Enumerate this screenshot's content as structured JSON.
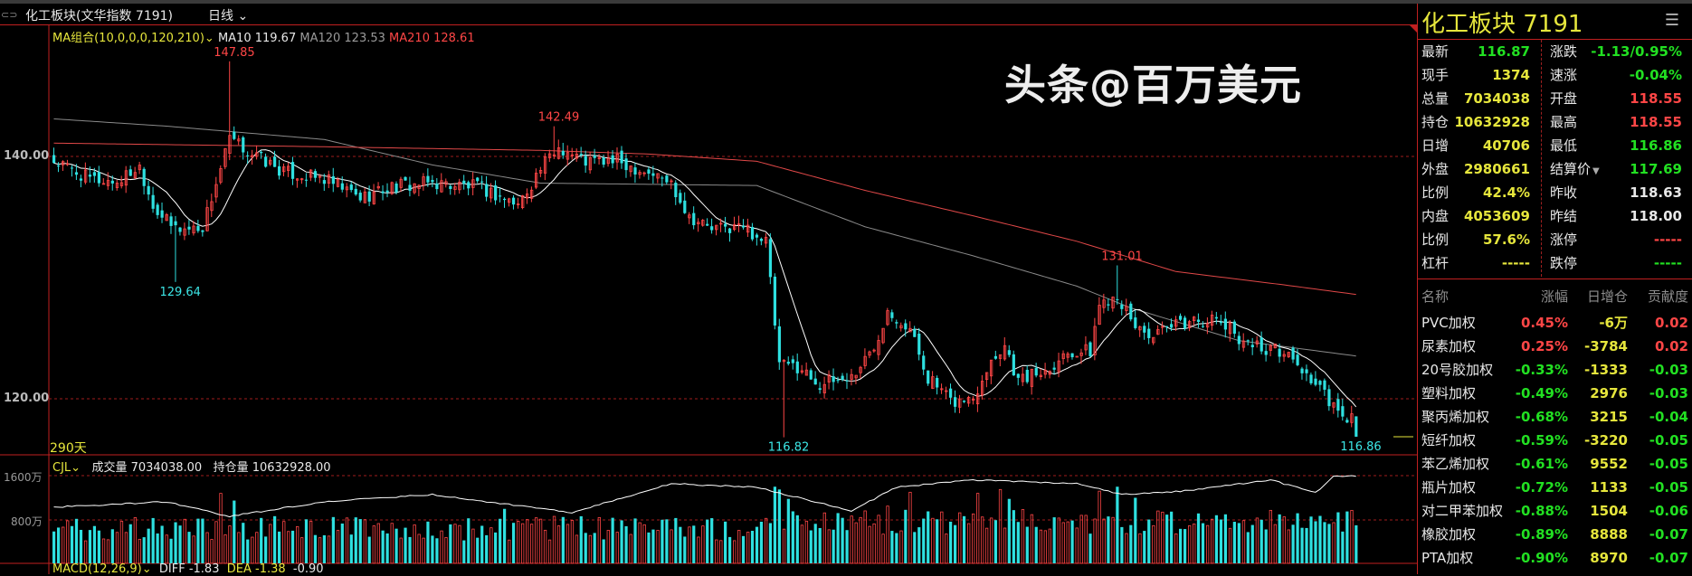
{
  "header": {
    "title": "化工板块(文华指数 7191)",
    "period": "日线"
  },
  "legend": {
    "ma_group": "MA组合(10,0,0,0,120,210)",
    "ma10": "MA10 119.67",
    "ma120": "MA120 123.53",
    "ma210": "MA210 128.61"
  },
  "axis": {
    "p140": "140.00",
    "p120": "120.00",
    "days": "290天",
    "v1600": "1600万",
    "v800": "800万"
  },
  "volume_legend": {
    "name": "CJL",
    "vol": "成交量 7034038.00",
    "oi": "持仓量 10632928.00"
  },
  "macd_legend": {
    "name": "MACD(12,26,9)",
    "diff": "DIFF -1.83",
    "dea": "DEA -1.38",
    "macd": "-0.90"
  },
  "colors": {
    "up": "#ff4646",
    "down": "#2ee0e0",
    "ma10": "#ffffff",
    "ma120": "#8a8a8a",
    "ma210": "#e04848",
    "grid": "#a01c1c"
  },
  "chart_data": {
    "type": "candlestick",
    "days": 290,
    "price_range": [
      115.4,
      150.8
    ],
    "close_anchors": [
      [
        0,
        139.6
      ],
      [
        8,
        138.1
      ],
      [
        14,
        137.9
      ],
      [
        19,
        139.2
      ],
      [
        22,
        136
      ],
      [
        26,
        134.2
      ],
      [
        29,
        134
      ],
      [
        33,
        134.2
      ],
      [
        36,
        137.8
      ],
      [
        39,
        141.4
      ],
      [
        44,
        140.2
      ],
      [
        51,
        138.7
      ],
      [
        60,
        138.1
      ],
      [
        68,
        136.6
      ],
      [
        75,
        137.5
      ],
      [
        84,
        137.8
      ],
      [
        94,
        137.5
      ],
      [
        103,
        136
      ],
      [
        108,
        139
      ],
      [
        112,
        140.8
      ],
      [
        118,
        139.6
      ],
      [
        125,
        139.6
      ],
      [
        132,
        138.7
      ],
      [
        137,
        137.8
      ],
      [
        141,
        135.1
      ],
      [
        146,
        134
      ],
      [
        153,
        134.2
      ],
      [
        158,
        133
      ],
      [
        161,
        122.7
      ],
      [
        165,
        122.7
      ],
      [
        170,
        121.2
      ],
      [
        177,
        121.8
      ],
      [
        182,
        124.2
      ],
      [
        185,
        127.5
      ],
      [
        190,
        125.7
      ],
      [
        194,
        121.8
      ],
      [
        199,
        119.7
      ],
      [
        204,
        120
      ],
      [
        207,
        122.7
      ],
      [
        211,
        124.5
      ],
      [
        214,
        121.5
      ],
      [
        220,
        122.4
      ],
      [
        225,
        123.9
      ],
      [
        230,
        123.9
      ],
      [
        232,
        127.8
      ],
      [
        236,
        128.7
      ],
      [
        239,
        126.3
      ],
      [
        244,
        125.1
      ],
      [
        249,
        126
      ],
      [
        254,
        126.6
      ],
      [
        259,
        126.3
      ],
      [
        263,
        125.1
      ],
      [
        268,
        124.2
      ],
      [
        273,
        123.9
      ],
      [
        277,
        122.4
      ],
      [
        282,
        120.3
      ],
      [
        286,
        118.2
      ],
      [
        288,
        118.63
      ],
      [
        289,
        116.87
      ]
    ],
    "last_candle": {
      "open": 118.55,
      "high": 118.55,
      "low": 116.86,
      "close": 116.87
    },
    "ma120_anchors": [
      [
        0,
        143.1
      ],
      [
        25,
        142.5
      ],
      [
        60,
        141.4
      ],
      [
        84,
        139.3
      ],
      [
        108,
        137.8
      ],
      [
        156,
        137.6
      ],
      [
        180,
        134.2
      ],
      [
        204,
        131.8
      ],
      [
        227,
        129.3
      ],
      [
        239,
        127.5
      ],
      [
        263,
        124.8
      ],
      [
        289,
        123.53
      ]
    ],
    "ma210_anchors": [
      [
        0,
        141.1
      ],
      [
        60,
        140.8
      ],
      [
        108,
        140.5
      ],
      [
        132,
        140.2
      ],
      [
        156,
        139.6
      ],
      [
        180,
        137.2
      ],
      [
        204,
        135.1
      ],
      [
        227,
        133
      ],
      [
        249,
        130.5
      ],
      [
        273,
        129.4
      ],
      [
        289,
        128.61
      ]
    ],
    "extremes": [
      {
        "day": 39,
        "kind": "high",
        "value": 147.85,
        "label": "147.85"
      },
      {
        "day": 27,
        "kind": "low",
        "value": 129.64,
        "label": "129.64"
      },
      {
        "day": 111,
        "kind": "high",
        "value": 142.49,
        "label": "142.49"
      },
      {
        "day": 236,
        "kind": "high",
        "value": 131.01,
        "label": "131.01"
      },
      {
        "day": 162,
        "kind": "low",
        "value": 116.82,
        "label": "116.82"
      },
      {
        "day": 289,
        "kind": "low",
        "value": 116.86,
        "label": "116.86"
      }
    ],
    "volume_unit": "万",
    "volume_range": [
      0,
      1600
    ],
    "volume_last": 703,
    "volume_spikes": [
      [
        37,
        1280
      ],
      [
        40,
        1150
      ],
      [
        100,
        1000
      ],
      [
        160,
        1400
      ],
      [
        161,
        1350
      ],
      [
        163,
        1180
      ],
      [
        185,
        1050
      ],
      [
        190,
        1300
      ],
      [
        205,
        1280
      ],
      [
        210,
        1350
      ],
      [
        212,
        1180
      ],
      [
        232,
        1320
      ],
      [
        236,
        1400
      ],
      [
        240,
        1200
      ]
    ],
    "open_interest_anchors": [
      [
        0,
        1030
      ],
      [
        25,
        1128
      ],
      [
        39,
        865
      ],
      [
        60,
        1128
      ],
      [
        84,
        1259
      ],
      [
        115,
        931
      ],
      [
        137,
        1456
      ],
      [
        156,
        1390
      ],
      [
        177,
        964
      ],
      [
        187,
        1390
      ],
      [
        204,
        1521
      ],
      [
        227,
        1456
      ],
      [
        237,
        1259
      ],
      [
        251,
        1325
      ],
      [
        270,
        1521
      ],
      [
        280,
        1292
      ],
      [
        284,
        1587
      ],
      [
        289,
        1600
      ]
    ]
  },
  "panel": {
    "title": "化工板块  7191",
    "quotes": [
      {
        "l1": "最新",
        "v1": "116.87",
        "c1": "grn",
        "l2": "涨跌",
        "v2": "-1.13/0.95%",
        "c2": "grn"
      },
      {
        "l1": "现手",
        "v1": "1374",
        "c1": "yel",
        "l2": "速涨",
        "v2": "-0.04%",
        "c2": "grn"
      },
      {
        "l1": "总量",
        "v1": "7034038",
        "c1": "yel",
        "l2": "开盘",
        "v2": "118.55",
        "c2": "red"
      },
      {
        "l1": "持仓",
        "v1": "10632928",
        "c1": "yel",
        "l2": "最高",
        "v2": "118.55",
        "c2": "red"
      },
      {
        "l1": "日增",
        "v1": "40706",
        "c1": "yel",
        "l2": "最低",
        "v2": "116.86",
        "c2": "grn"
      },
      {
        "l1": "外盘",
        "v1": "2980661",
        "c1": "yel",
        "l2": "结算价",
        "v2": "117.69",
        "c2": "grn"
      },
      {
        "l1": "比例",
        "v1": "42.4%",
        "c1": "yel",
        "l2": "昨收",
        "v2": "118.63",
        "c2": "wht"
      },
      {
        "l1": "内盘",
        "v1": "4053609",
        "c1": "yel",
        "l2": "昨结",
        "v2": "118.00",
        "c2": "wht"
      },
      {
        "l1": "比例",
        "v1": "57.6%",
        "c1": "yel",
        "l2": "涨停",
        "v2": "-----",
        "c2": "red"
      },
      {
        "l1": "杠杆",
        "v1": "-----",
        "c1": "yel",
        "l2": "跌停",
        "v2": "-----",
        "c2": "grn"
      }
    ],
    "list_headers": [
      "名称",
      "涨幅",
      "日增仓",
      "贡献度"
    ],
    "list": [
      {
        "name": "PVC加权",
        "chg": "0.45%",
        "oi": "-6万",
        "contrib": "0.02",
        "cc": "red"
      },
      {
        "name": "尿素加权",
        "chg": "0.25%",
        "oi": "-3784",
        "contrib": "0.02",
        "cc": "red"
      },
      {
        "name": "20号胶加权",
        "chg": "-0.33%",
        "oi": "-1333",
        "contrib": "-0.03",
        "cc": "grn"
      },
      {
        "name": "塑料加权",
        "chg": "-0.49%",
        "oi": "2976",
        "contrib": "-0.03",
        "cc": "grn"
      },
      {
        "name": "聚丙烯加权",
        "chg": "-0.68%",
        "oi": "3215",
        "contrib": "-0.04",
        "cc": "grn"
      },
      {
        "name": "短纤加权",
        "chg": "-0.59%",
        "oi": "-3220",
        "contrib": "-0.05",
        "cc": "grn"
      },
      {
        "name": "苯乙烯加权",
        "chg": "-0.61%",
        "oi": "9552",
        "contrib": "-0.05",
        "cc": "grn"
      },
      {
        "name": "瓶片加权",
        "chg": "-0.72%",
        "oi": "1133",
        "contrib": "-0.05",
        "cc": "grn"
      },
      {
        "name": "对二甲苯加权",
        "chg": "-0.88%",
        "oi": "1504",
        "contrib": "-0.06",
        "cc": "grn"
      },
      {
        "name": "橡胶加权",
        "chg": "-0.89%",
        "oi": "8888",
        "contrib": "-0.07",
        "cc": "grn"
      },
      {
        "name": "PTA加权",
        "chg": "-0.90%",
        "oi": "8970",
        "contrib": "-0.07",
        "cc": "grn"
      }
    ]
  },
  "watermark": "头条@百万美元"
}
